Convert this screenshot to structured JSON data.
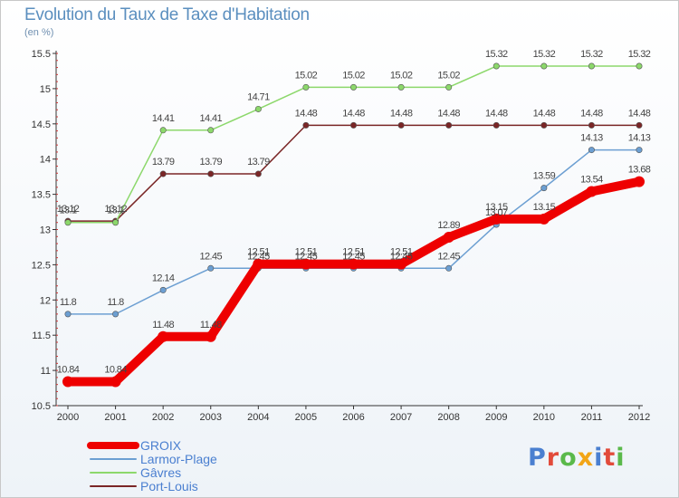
{
  "header": {
    "title": "Evolution du Taux de Taxe d'Habitation",
    "subtitle": "(en %)"
  },
  "logo": {
    "text": "Proxiti",
    "letters": [
      {
        "ch": "P",
        "color": "#4a7fd0"
      },
      {
        "ch": "r",
        "color": "#e24b3b"
      },
      {
        "ch": "o",
        "color": "#5ab94a"
      },
      {
        "ch": "x",
        "color": "#f2a516"
      },
      {
        "ch": "i",
        "color": "#4a7fd0"
      },
      {
        "ch": "t",
        "color": "#e24b3b"
      },
      {
        "ch": "i",
        "color": "#5ab94a"
      }
    ]
  },
  "chart_data": {
    "type": "line",
    "title": "Evolution du Taux de Taxe d'Habitation",
    "subtitle": "(en %)",
    "x": [
      "2000",
      "2001",
      "2002",
      "2003",
      "2004",
      "2005",
      "2006",
      "2007",
      "2008",
      "2009",
      "2010",
      "2011",
      "2012"
    ],
    "ylim": [
      10.5,
      15.5
    ],
    "yticks": [
      "10.5",
      "11",
      "11.5",
      "12",
      "12.5",
      "13",
      "13.5",
      "14",
      "14.5",
      "15",
      "15.5"
    ],
    "grid": false,
    "legend_position": "bottom-left",
    "series": [
      {
        "name": "GROIX",
        "color": "#ee0000",
        "values": [
          10.84,
          10.84,
          11.48,
          11.48,
          12.51,
          12.51,
          12.51,
          12.51,
          12.89,
          13.15,
          13.15,
          13.54,
          13.68
        ],
        "labels": [
          "10.84",
          "10.84",
          "11.48",
          "11.48",
          "12.51",
          "12.51",
          "12.51",
          "12.51",
          "12.89",
          "13.15",
          "13.15",
          "13.54",
          "13.68"
        ],
        "bold": true
      },
      {
        "name": "Larmor-Plage",
        "color": "#6c9fd2",
        "values": [
          11.8,
          11.8,
          12.14,
          12.45,
          12.45,
          12.45,
          12.45,
          12.45,
          12.45,
          13.07,
          13.59,
          14.13,
          14.13
        ],
        "labels": [
          "11.8",
          "11.8",
          "12.14",
          "12.45",
          "12.45",
          "12.45",
          "12.45",
          "12.45",
          "12.45",
          "13.07",
          "13.59",
          "14.13",
          "14.13"
        ],
        "bold": false
      },
      {
        "name": "Gâvres",
        "color": "#8cd86b",
        "values": [
          13.1,
          13.1,
          14.41,
          14.41,
          14.71,
          15.02,
          15.02,
          15.02,
          15.02,
          15.32,
          15.32,
          15.32,
          15.32
        ],
        "labels": [
          "13.1",
          "13.1",
          "14.41",
          "14.41",
          "14.71",
          "15.02",
          "15.02",
          "15.02",
          "15.02",
          "15.32",
          "15.32",
          "15.32",
          "15.32"
        ],
        "bold": false
      },
      {
        "name": "Port-Louis",
        "color": "#7a2626",
        "values": [
          13.12,
          13.12,
          13.79,
          13.79,
          13.79,
          14.48,
          14.48,
          14.48,
          14.48,
          14.48,
          14.48,
          14.48,
          14.48
        ],
        "labels": [
          "13.12",
          "13.12",
          "13.79",
          "13.79",
          "13.79",
          "14.48",
          "14.48",
          "14.48",
          "14.48",
          "14.48",
          "14.48",
          "14.48",
          "14.48"
        ],
        "bold": false
      }
    ]
  }
}
